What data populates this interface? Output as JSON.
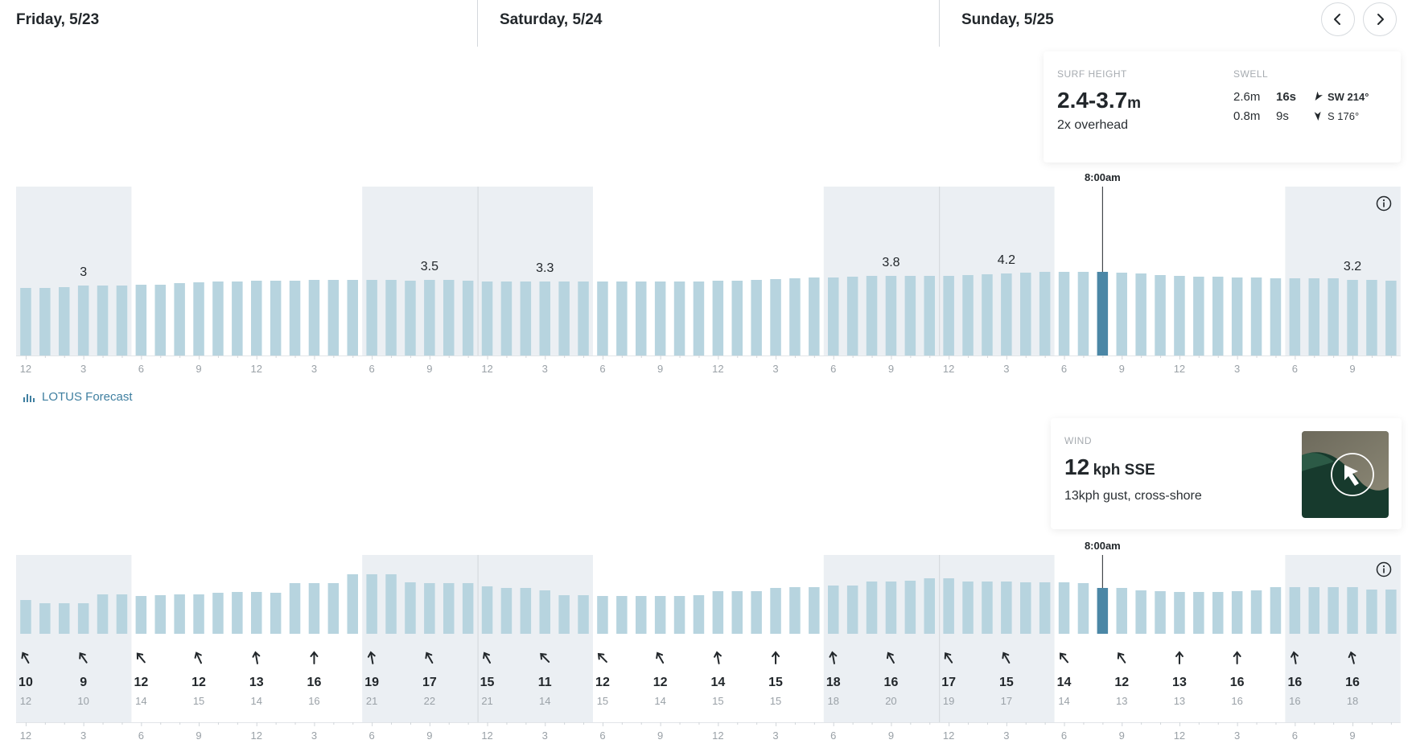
{
  "days": [
    {
      "label": "Friday, 5/23"
    },
    {
      "label": "Saturday, 5/24"
    },
    {
      "label": "Sunday, 5/25"
    }
  ],
  "nav": {
    "prev_icon": "chevron-left-icon",
    "next_icon": "chevron-right-icon"
  },
  "surf_card": {
    "surf_caption": "SURF HEIGHT",
    "surf_value": "2.4-3.7",
    "surf_unit": "m",
    "surf_desc": "2x overhead",
    "swell_caption": "SWELL",
    "swells": [
      {
        "height": "2.6m",
        "period": "16s",
        "direction": "SW 214°"
      },
      {
        "height": "0.8m",
        "period": "9s",
        "direction": "S 176°"
      }
    ]
  },
  "wind_card": {
    "caption": "WIND",
    "speed": "12",
    "unit_dir": "kph SSE",
    "desc": "13kph gust, cross-shore",
    "map_icon": "wind-map-thumbnail"
  },
  "lotus": {
    "label": "LOTUS Forecast",
    "icon": "bar-chart-icon"
  },
  "time_labels": [
    "12",
    "3",
    "6",
    "9",
    "12",
    "3",
    "6",
    "9",
    "12",
    "3",
    "6",
    "9",
    "12",
    "3",
    "6",
    "9",
    "12",
    "3",
    "6",
    "9",
    "12",
    "3",
    "6",
    "9"
  ],
  "surf_chart": {
    "selected_time": "8:00am",
    "peaks": [
      {
        "label": "3",
        "bar": 3
      },
      {
        "label": "3.5",
        "bar": 21
      },
      {
        "label": "3.3",
        "bar": 27
      },
      {
        "label": "3.8",
        "bar": 45
      },
      {
        "label": "4.2",
        "bar": 51
      },
      {
        "label": "3.2",
        "bar": 69
      }
    ]
  },
  "wind_chart": {
    "selected_time": "8:00am",
    "entries": [
      {
        "speed": "10",
        "gust": "12",
        "dir": 330
      },
      {
        "speed": "9",
        "gust": "10",
        "dir": 325
      },
      {
        "speed": "12",
        "gust": "14",
        "dir": 320
      },
      {
        "speed": "12",
        "gust": "15",
        "dir": 335
      },
      {
        "speed": "13",
        "gust": "14",
        "dir": 350
      },
      {
        "speed": "16",
        "gust": "16",
        "dir": 0
      },
      {
        "speed": "19",
        "gust": "21",
        "dir": 350
      },
      {
        "speed": "17",
        "gust": "22",
        "dir": 330
      },
      {
        "speed": "15",
        "gust": "21",
        "dir": 330
      },
      {
        "speed": "11",
        "gust": "14",
        "dir": 315
      },
      {
        "speed": "12",
        "gust": "15",
        "dir": 315
      },
      {
        "speed": "12",
        "gust": "14",
        "dir": 330
      },
      {
        "speed": "14",
        "gust": "15",
        "dir": 350
      },
      {
        "speed": "15",
        "gust": "15",
        "dir": 0
      },
      {
        "speed": "18",
        "gust": "18",
        "dir": 350
      },
      {
        "speed": "16",
        "gust": "20",
        "dir": 330
      },
      {
        "speed": "17",
        "gust": "19",
        "dir": 325
      },
      {
        "speed": "15",
        "gust": "17",
        "dir": 330
      },
      {
        "speed": "14",
        "gust": "14",
        "dir": 320
      },
      {
        "speed": "12",
        "gust": "13",
        "dir": 325
      },
      {
        "speed": "13",
        "gust": "13",
        "dir": 0
      },
      {
        "speed": "16",
        "gust": "16",
        "dir": 0
      },
      {
        "speed": "16",
        "gust": "16",
        "dir": 350
      },
      {
        "speed": "16",
        "gust": "18",
        "dir": 345
      }
    ]
  },
  "colors": {
    "bar": "#b7d4df",
    "bar_selected": "#4b87a6",
    "night": "#ebeff3",
    "grid": "#d1d6da",
    "tick": "#9aa1a7"
  }
}
